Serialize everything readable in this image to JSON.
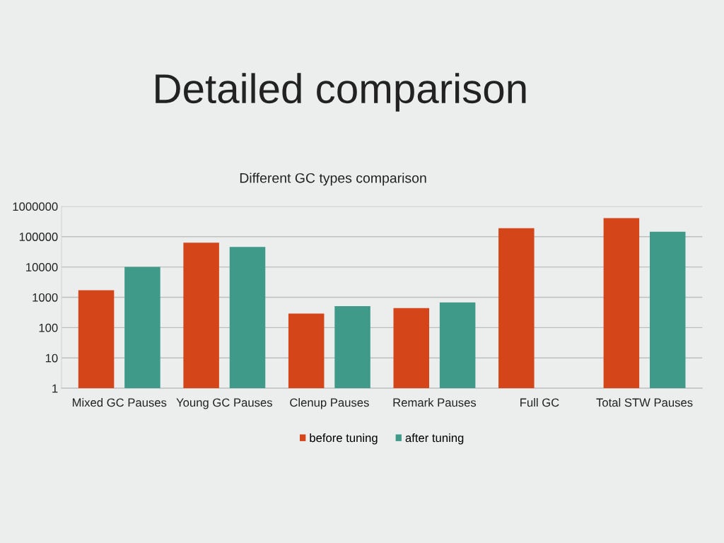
{
  "chart_data": {
    "type": "bar",
    "title": "Detailed comparison",
    "subtitle": "Different GC types comparison",
    "categories": [
      "Mixed GC Pauses",
      "Young GC Pauses",
      "Clenup Pauses",
      "Remark Pauses",
      "Full GC",
      "Total STW Pauses"
    ],
    "series": [
      {
        "name": "before tuning",
        "color": "#d4451a",
        "values": [
          1700,
          63000,
          290,
          440,
          190000,
          410000
        ]
      },
      {
        "name": "after tuning",
        "color": "#3f9a8a",
        "values": [
          10000,
          46000,
          510,
          680,
          null,
          145000
        ]
      }
    ],
    "log": true,
    "ylim": [
      1,
      1000000
    ],
    "yticks": [
      1,
      10,
      100,
      1000,
      10000,
      100000,
      1000000
    ],
    "grid": "y",
    "legend": "bottom"
  }
}
